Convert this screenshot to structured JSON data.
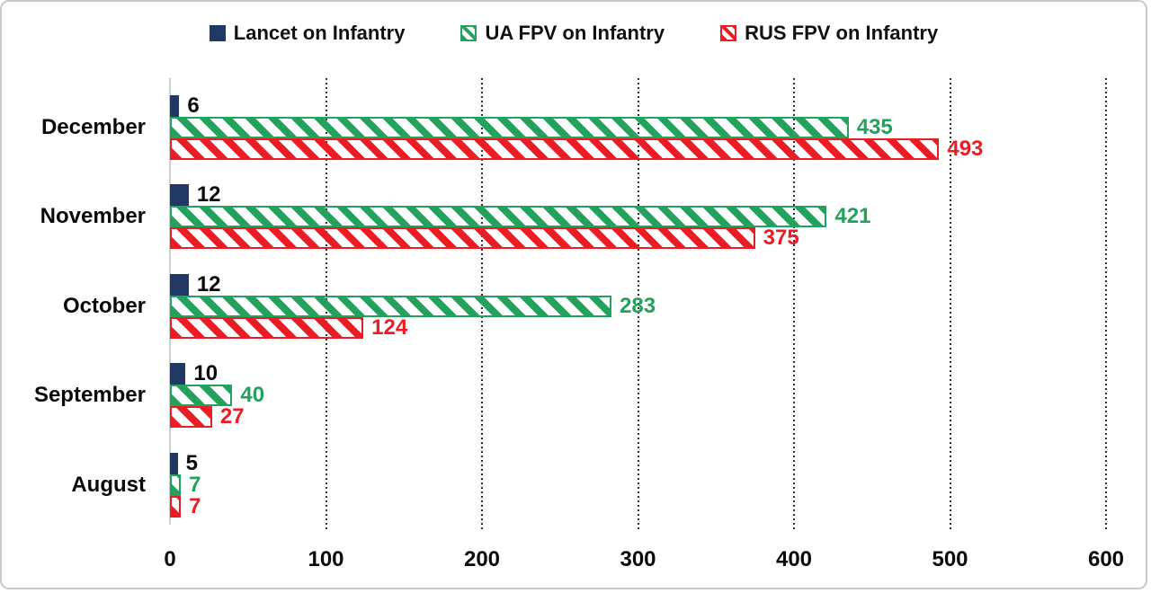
{
  "chart_data": {
    "type": "bar",
    "orientation": "horizontal",
    "title": "",
    "xlabel": "",
    "ylabel": "",
    "categories": [
      "December",
      "November",
      "October",
      "September",
      "August"
    ],
    "series": [
      {
        "name": "Lancet on Infantry",
        "color": "#1f3864",
        "pattern": "solid",
        "label_color": "#0a0a0a",
        "values": [
          6,
          12,
          12,
          10,
          5
        ]
      },
      {
        "name": "UA FPV on Infantry",
        "color": "#22a25c",
        "pattern": "diagonal-hatch",
        "label_color": "#22a25c",
        "values": [
          435,
          421,
          283,
          40,
          7
        ]
      },
      {
        "name": "RUS FPV on Infantry",
        "color": "#ec1c24",
        "pattern": "diagonal-hatch",
        "label_color": "#ec1c24",
        "values": [
          493,
          375,
          124,
          27,
          7
        ]
      }
    ],
    "xlim": [
      0,
      600
    ],
    "xticks": [
      0,
      100,
      200,
      300,
      400,
      500,
      600
    ],
    "grid": "vertical-dotted",
    "gridline_color": "#2e2e2e",
    "zero_axis_color": "#cdd0d3",
    "legend_position": "top-center",
    "value_labels": true,
    "background": "#ffffff"
  }
}
